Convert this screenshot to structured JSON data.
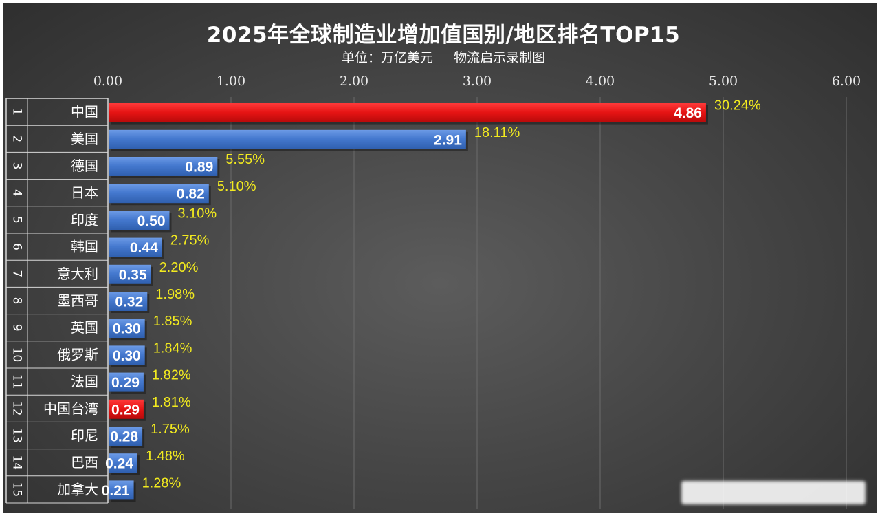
{
  "chart_data": {
    "type": "bar",
    "orientation": "horizontal",
    "title": "2025年全球制造业增加值国别/地区排名TOP15",
    "subtitle": "单位：万亿美元     物流启示录制图",
    "xlim": [
      0,
      6
    ],
    "x_ticks": [
      "0.00",
      "1.00",
      "2.00",
      "3.00",
      "4.00",
      "5.00",
      "6.00"
    ],
    "axis_position": "top",
    "grid": true,
    "colors": {
      "highlight": "#e01010",
      "default": "#3f73c8",
      "share_label": "#f2ea1f"
    },
    "rows": [
      {
        "rank": "1",
        "name": "中国",
        "value": 4.86,
        "value_label": "4.86",
        "share": "30.24%",
        "highlight": true
      },
      {
        "rank": "2",
        "name": "美国",
        "value": 2.91,
        "value_label": "2.91",
        "share": "18.11%",
        "highlight": false
      },
      {
        "rank": "3",
        "name": "德国",
        "value": 0.89,
        "value_label": "0.89",
        "share": "5.55%",
        "highlight": false
      },
      {
        "rank": "4",
        "name": "日本",
        "value": 0.82,
        "value_label": "0.82",
        "share": "5.10%",
        "highlight": false
      },
      {
        "rank": "5",
        "name": "印度",
        "value": 0.5,
        "value_label": "0.50",
        "share": "3.10%",
        "highlight": false
      },
      {
        "rank": "6",
        "name": "韩国",
        "value": 0.44,
        "value_label": "0.44",
        "share": "2.75%",
        "highlight": false
      },
      {
        "rank": "7",
        "name": "意大利",
        "value": 0.35,
        "value_label": "0.35",
        "share": "2.20%",
        "highlight": false
      },
      {
        "rank": "8",
        "name": "墨西哥",
        "value": 0.32,
        "value_label": "0.32",
        "share": "1.98%",
        "highlight": false
      },
      {
        "rank": "9",
        "name": "英国",
        "value": 0.3,
        "value_label": "0.30",
        "share": "1.85%",
        "highlight": false
      },
      {
        "rank": "10",
        "name": "俄罗斯",
        "value": 0.3,
        "value_label": "0.30",
        "share": "1.84%",
        "highlight": false
      },
      {
        "rank": "11",
        "name": "法国",
        "value": 0.29,
        "value_label": "0.29",
        "share": "1.82%",
        "highlight": false
      },
      {
        "rank": "12",
        "name": "中国台湾",
        "value": 0.29,
        "value_label": "0.29",
        "share": "1.81%",
        "highlight": true
      },
      {
        "rank": "13",
        "name": "印尼",
        "value": 0.28,
        "value_label": "0.28",
        "share": "1.75%",
        "highlight": false
      },
      {
        "rank": "14",
        "name": "巴西",
        "value": 0.24,
        "value_label": "0.24",
        "share": "1.48%",
        "highlight": false
      },
      {
        "rank": "15",
        "name": "加拿大",
        "value": 0.21,
        "value_label": "0.21",
        "share": "1.28%",
        "highlight": false
      }
    ]
  }
}
